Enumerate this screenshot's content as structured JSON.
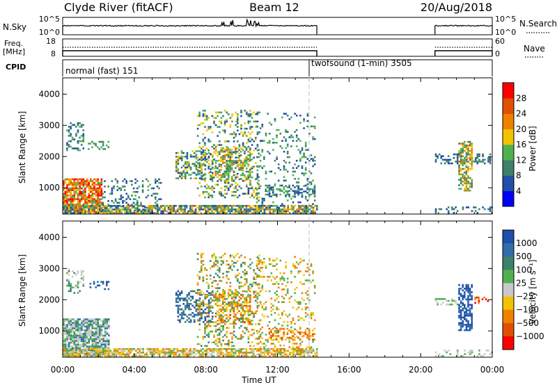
{
  "header": {
    "station": "Clyde River (fitACF)",
    "beam": "Beam 12",
    "date": "20/Aug/2018"
  },
  "status_panels": {
    "nsky_label": "N.Sky",
    "nsky_ticks": [
      "10^5",
      "10^0"
    ],
    "nsearch_label": "N.Search",
    "nsearch_ticks": [
      "10^5",
      "10^0"
    ],
    "freq_label": "Freq.",
    "freq_unit": "[MHz]",
    "freq_ticks": [
      "18",
      "8"
    ],
    "nave_label": "Nave",
    "nave_ticks": [
      "60",
      "0"
    ],
    "cpid_label": "CPID",
    "cpid_segments": [
      {
        "label": "normal (fast) 151",
        "start_hour": 0.0,
        "end_hour": 14.2
      },
      {
        "label": "twofsound (1-min) 3505",
        "start_hour": 14.2,
        "end_hour": 24.0
      }
    ]
  },
  "colors": {
    "power": [
      "#0000ff",
      "#1f4fa8",
      "#3e8068",
      "#50b050",
      "#f2c200",
      "#f08000",
      "#e05000",
      "#ff0000"
    ],
    "velocity": [
      "#1f4fa8",
      "#2f6ea8",
      "#3e8068",
      "#50b050",
      "#c8c8c8",
      "#f2c200",
      "#f08000",
      "#e05000",
      "#ff0000"
    ]
  },
  "chart_data": [
    {
      "type": "heatmap",
      "name": "power",
      "ylabel": "Slant Range [km]",
      "ylim": [
        180,
        4500
      ],
      "yticks": [
        "1000",
        "2000",
        "3000",
        "4000"
      ],
      "xlim_hours": [
        0,
        24
      ],
      "colorbar_label": "Power [dB]",
      "colorbar_ticks": [
        "4",
        "8",
        "12",
        "16",
        "20",
        "24",
        "28"
      ],
      "scatter_regions": [
        {
          "t0": 0.0,
          "t1": 2.2,
          "r0": 200,
          "r1": 1300,
          "density": 0.85,
          "levels": [
            6,
            7,
            5,
            4,
            3
          ]
        },
        {
          "t0": 0.0,
          "t1": 14.2,
          "r0": 180,
          "r1": 450,
          "density": 0.8,
          "levels": [
            1,
            2,
            3,
            4,
            5
          ]
        },
        {
          "t0": 0.2,
          "t1": 1.2,
          "r0": 2200,
          "r1": 3100,
          "density": 0.35,
          "levels": [
            1,
            2,
            3
          ]
        },
        {
          "t0": 1.4,
          "t1": 2.6,
          "r0": 2250,
          "r1": 2500,
          "density": 0.35,
          "levels": [
            2,
            3
          ]
        },
        {
          "t0": 2.2,
          "t1": 5.5,
          "r0": 300,
          "r1": 1300,
          "density": 0.2,
          "levels": [
            1,
            2,
            3
          ]
        },
        {
          "t0": 6.3,
          "t1": 8.4,
          "r0": 1300,
          "r1": 2200,
          "density": 0.45,
          "levels": [
            1,
            2,
            3,
            4
          ]
        },
        {
          "t0": 7.5,
          "t1": 11.0,
          "r0": 700,
          "r1": 3500,
          "density": 0.25,
          "levels": [
            1,
            2,
            3,
            4
          ]
        },
        {
          "t0": 8.5,
          "t1": 10.5,
          "r0": 1200,
          "r1": 2300,
          "density": 0.4,
          "levels": [
            2,
            3,
            4,
            5
          ]
        },
        {
          "t0": 10.8,
          "t1": 14.1,
          "r0": 500,
          "r1": 3400,
          "density": 0.15,
          "levels": [
            1,
            2,
            3
          ]
        },
        {
          "t0": 11.3,
          "t1": 14.1,
          "r0": 700,
          "r1": 1100,
          "density": 0.45,
          "levels": [
            1,
            2,
            3
          ]
        },
        {
          "t0": 20.8,
          "t1": 23.9,
          "r0": 1800,
          "r1": 2100,
          "density": 0.4,
          "levels": [
            1,
            2
          ]
        },
        {
          "t0": 22.1,
          "t1": 22.9,
          "r0": 900,
          "r1": 2500,
          "density": 0.6,
          "levels": [
            2,
            3,
            4,
            5
          ]
        },
        {
          "t0": 20.8,
          "t1": 24.0,
          "r0": 180,
          "r1": 400,
          "density": 0.3,
          "levels": [
            1,
            2
          ]
        }
      ]
    },
    {
      "type": "heatmap",
      "name": "velocity",
      "ylabel": "Slant Range [km]",
      "ylim": [
        180,
        4500
      ],
      "yticks": [
        "1000",
        "2000",
        "3000",
        "4000"
      ],
      "xlabel": "Time UT",
      "xticks": [
        "00:00",
        "04:00",
        "08:00",
        "12:00",
        "16:00",
        "20:00",
        "00:00"
      ],
      "xlim_hours": [
        0,
        24
      ],
      "colorbar_label": "Velocity [m s⁻¹]",
      "colorbar_ticks": [
        "1000",
        "500",
        "100",
        "25",
        "−25",
        "−100",
        "−500",
        "−1000"
      ],
      "scatter_regions": [
        {
          "t0": 0.0,
          "t1": 2.6,
          "r0": 200,
          "r1": 1400,
          "density": 0.85,
          "levels": [
            2,
            4,
            4,
            3,
            1
          ]
        },
        {
          "t0": 0.0,
          "t1": 14.2,
          "r0": 180,
          "r1": 450,
          "density": 0.75,
          "levels": [
            4,
            5,
            6,
            3
          ]
        },
        {
          "t0": 0.2,
          "t1": 1.2,
          "r0": 2200,
          "r1": 3000,
          "density": 0.3,
          "levels": [
            4,
            3,
            2
          ]
        },
        {
          "t0": 1.4,
          "t1": 2.6,
          "r0": 2350,
          "r1": 2600,
          "density": 0.35,
          "levels": [
            0,
            1
          ]
        },
        {
          "t0": 6.3,
          "t1": 8.4,
          "r0": 1300,
          "r1": 2300,
          "density": 0.45,
          "levels": [
            0,
            1,
            2
          ]
        },
        {
          "t0": 7.5,
          "t1": 11.0,
          "r0": 500,
          "r1": 3500,
          "density": 0.25,
          "levels": [
            2,
            3,
            5,
            6
          ]
        },
        {
          "t0": 8.5,
          "t1": 10.5,
          "r0": 1200,
          "r1": 2300,
          "density": 0.4,
          "levels": [
            3,
            5,
            6,
            7
          ]
        },
        {
          "t0": 10.8,
          "t1": 14.1,
          "r0": 500,
          "r1": 3400,
          "density": 0.15,
          "levels": [
            5,
            6,
            3
          ]
        },
        {
          "t0": 11.5,
          "t1": 14.1,
          "r0": 700,
          "r1": 1100,
          "density": 0.45,
          "levels": [
            6,
            5,
            7
          ]
        },
        {
          "t0": 20.8,
          "t1": 22.1,
          "r0": 1850,
          "r1": 2050,
          "density": 0.5,
          "levels": [
            4,
            3
          ]
        },
        {
          "t0": 22.1,
          "t1": 22.9,
          "r0": 1000,
          "r1": 2500,
          "density": 0.65,
          "levels": [
            0,
            1,
            0
          ]
        },
        {
          "t0": 23.0,
          "t1": 23.8,
          "r0": 1900,
          "r1": 2100,
          "density": 0.4,
          "levels": [
            6,
            8
          ]
        },
        {
          "t0": 20.8,
          "t1": 24.0,
          "r0": 180,
          "r1": 400,
          "density": 0.3,
          "levels": [
            3,
            4
          ]
        }
      ]
    }
  ]
}
